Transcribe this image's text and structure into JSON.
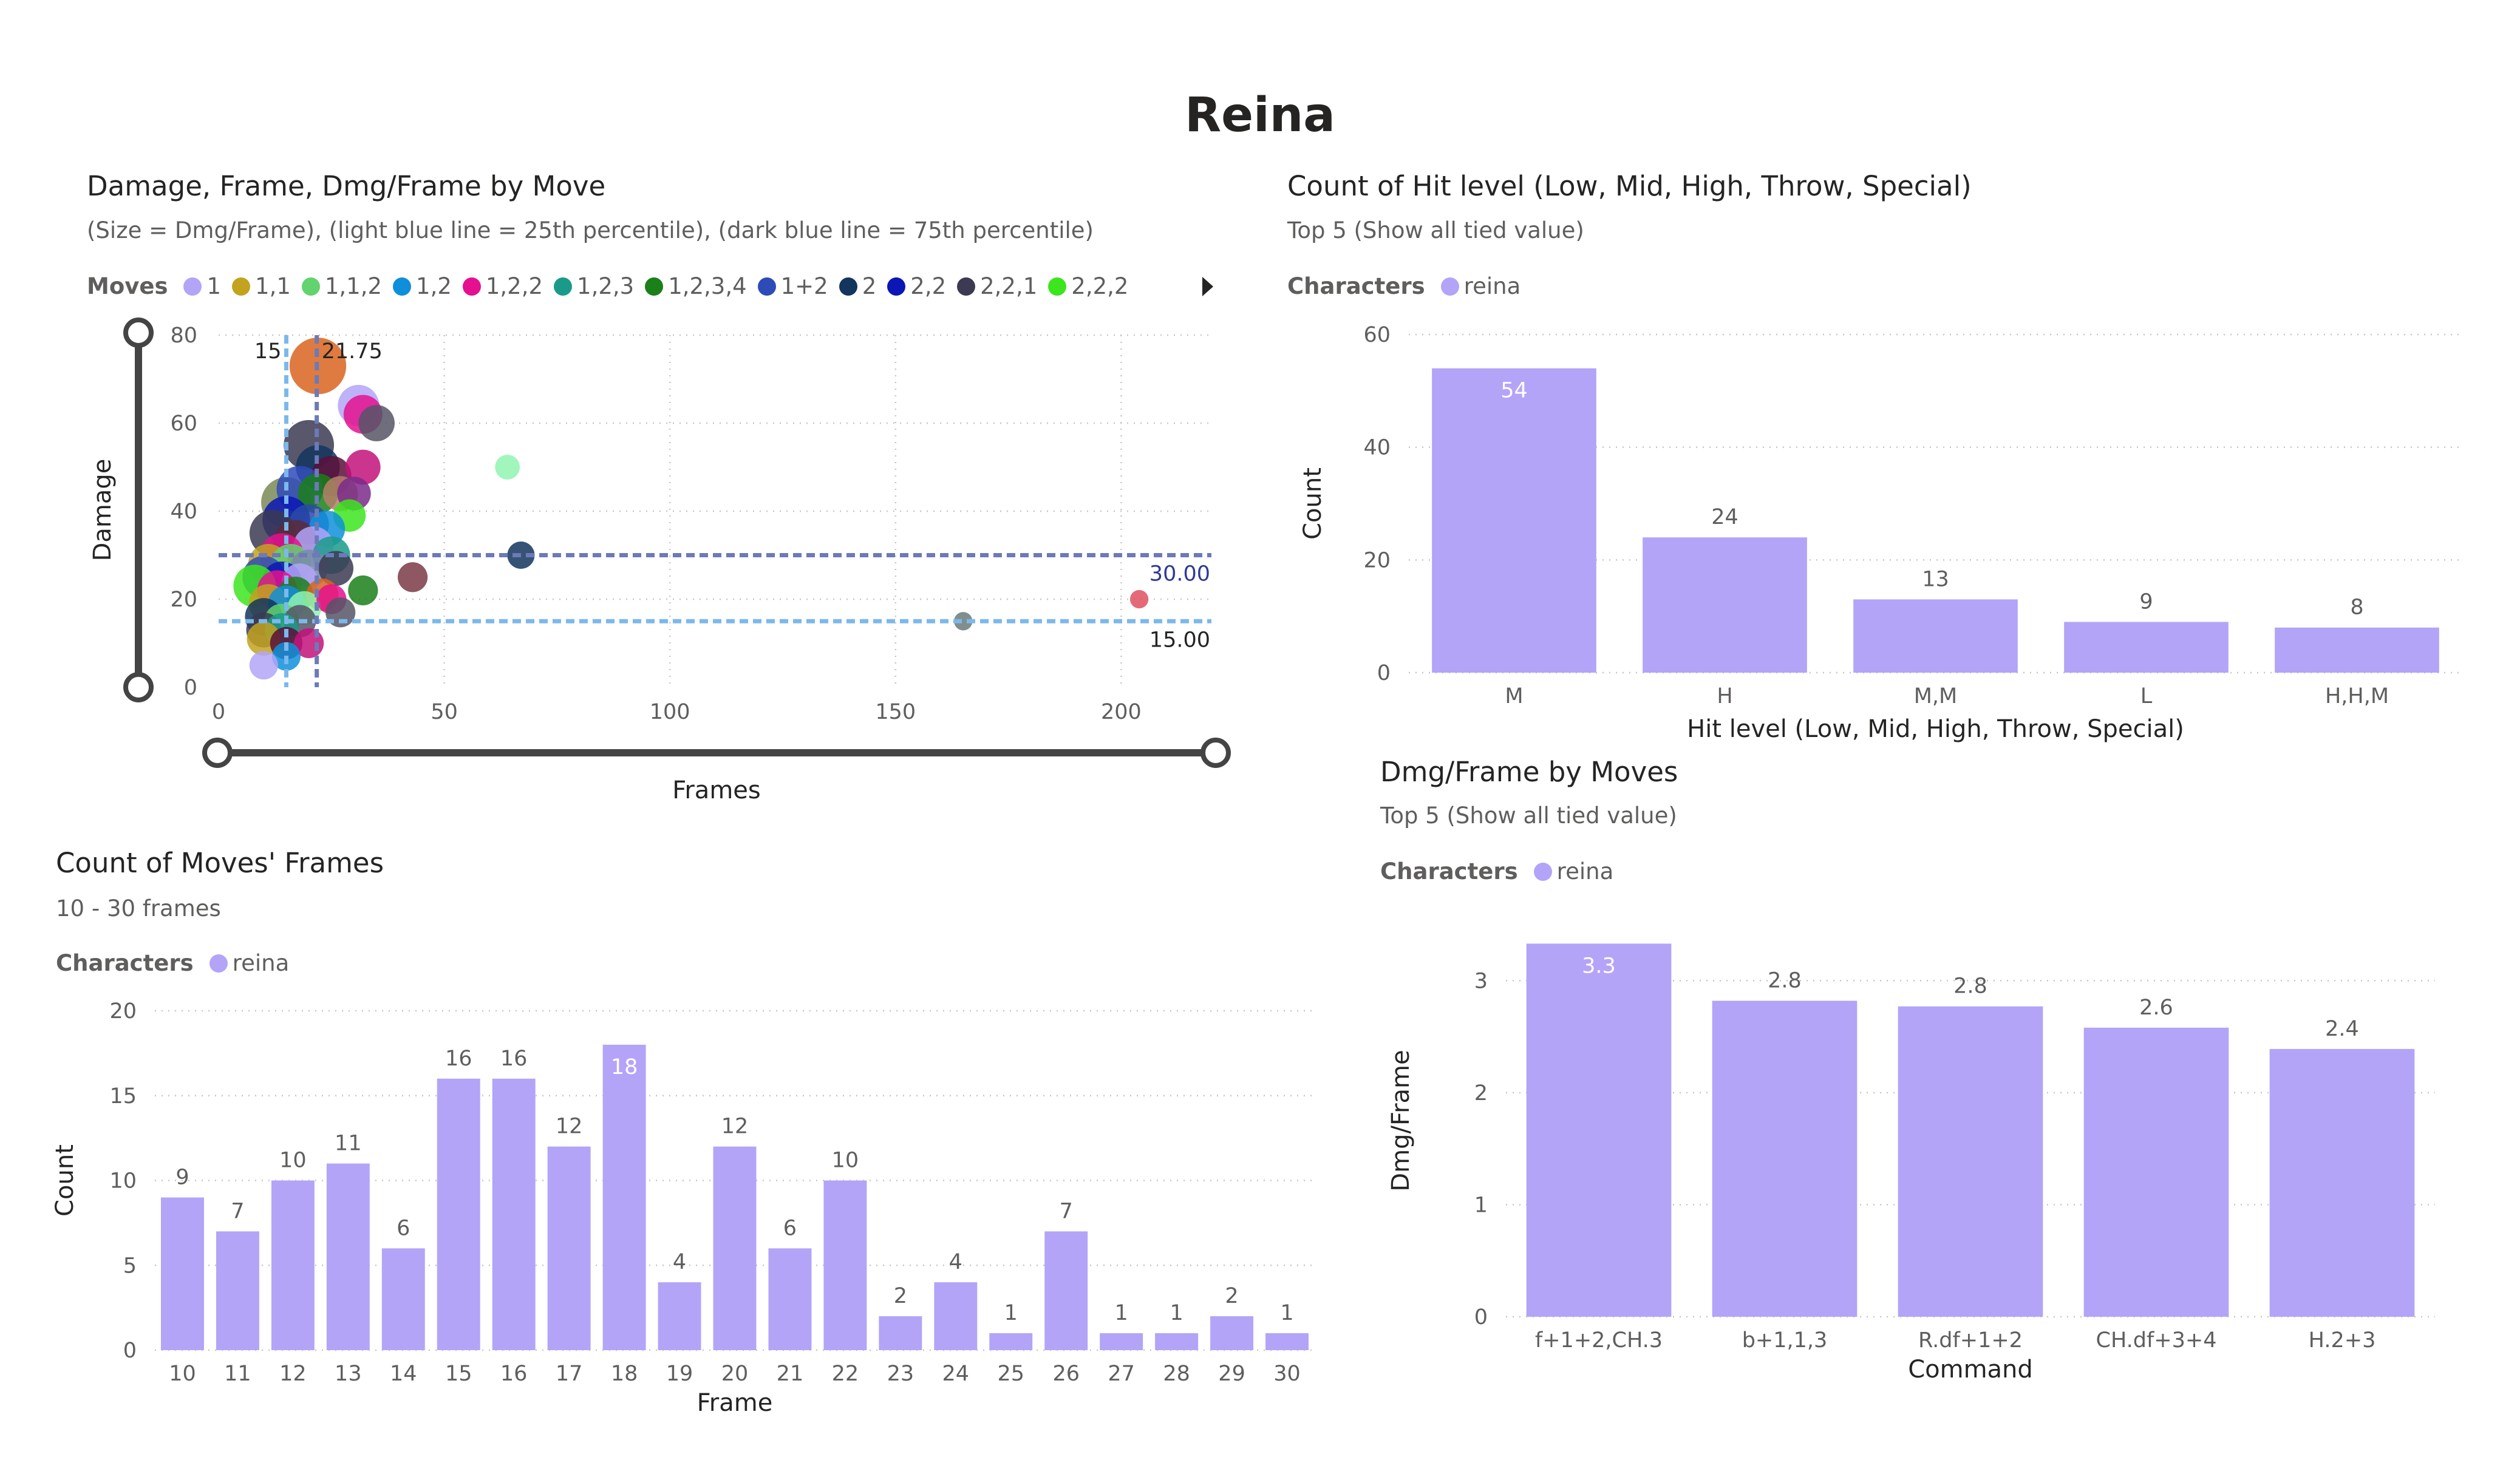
{
  "page": {
    "title": "Reina"
  },
  "colors": {
    "bar": "#b3a4f8",
    "p25": "#7cb8ec",
    "p75": "#6c7ab8",
    "grid": "#c8c6c4",
    "slider": "#444444"
  },
  "scatter": {
    "title": "Damage, Frame, Dmg/Frame by Move",
    "subtitle": "(Size = Dmg/Frame), (light blue line = 25th percentile), (dark blue line = 75th percentile)",
    "legend_title": "Moves",
    "legend": [
      {
        "label": "1",
        "color": "#b3a4f8"
      },
      {
        "label": "1,1",
        "color": "#c3a21e"
      },
      {
        "label": "1,1,2",
        "color": "#62d36f"
      },
      {
        "label": "1,2",
        "color": "#0f8fd9"
      },
      {
        "label": "1,2,2",
        "color": "#e5108f"
      },
      {
        "label": "1,2,3",
        "color": "#1a9b89"
      },
      {
        "label": "1,2,3,4",
        "color": "#1b7f1a"
      },
      {
        "label": "1+2",
        "color": "#2e4bb8"
      },
      {
        "label": "2",
        "color": "#13355e"
      },
      {
        "label": "2,2",
        "color": "#0a16b5"
      },
      {
        "label": "2,2,1",
        "color": "#3b3a52"
      },
      {
        "label": "2,2,2",
        "color": "#3ce51e"
      }
    ],
    "legend_more_icon": "triangle-right-icon",
    "slider_icon": "range-slider-handle-icon",
    "x_label": "Frames",
    "y_label": "Damage",
    "x_ticks": [
      "0",
      "50",
      "100",
      "150",
      "200"
    ],
    "y_ticks": [
      "0",
      "20",
      "40",
      "60",
      "80"
    ],
    "ref_lines": {
      "x_p25": {
        "value": 15,
        "label": "15"
      },
      "x_p75": {
        "value": 21.75,
        "label": "21.75"
      },
      "y_p25": {
        "value": 15,
        "label": "15.00"
      },
      "y_p75": {
        "value": 30,
        "label": "30.00"
      }
    }
  },
  "hit_chart": {
    "title": "Count of Hit level (Low, Mid, High, Throw, Special)",
    "subtitle": "Top 5 (Show all tied value)",
    "legend_title": "Characters",
    "legend_item": "reina",
    "x_label": "Hit level (Low, Mid, High, Throw, Special)",
    "y_label": "Count",
    "y_ticks": [
      "0",
      "20",
      "40",
      "60"
    ]
  },
  "dmg_chart": {
    "title": "Dmg/Frame by Moves",
    "subtitle": "Top 5 (Show all tied value)",
    "legend_title": "Characters",
    "legend_item": "reina",
    "x_label": "Command",
    "y_label": "Dmg/Frame",
    "y_ticks": [
      "0",
      "1",
      "2",
      "3"
    ]
  },
  "frames_chart": {
    "title": "Count of Moves' Frames",
    "subtitle": "10 - 30 frames",
    "legend_title": "Characters",
    "legend_item": "reina",
    "x_label": "Frame",
    "y_label": "Count",
    "y_ticks": [
      "0",
      "5",
      "10",
      "15",
      "20"
    ]
  },
  "chart_data": [
    {
      "type": "scatter",
      "title": "Damage, Frame, Dmg/Frame by Move",
      "xlabel": "Frames",
      "ylabel": "Damage",
      "xlim": [
        0,
        220
      ],
      "ylim": [
        0,
        80
      ],
      "points": [
        {
          "x": 22,
          "y": 73,
          "size": 3.3,
          "color": "#d9641e"
        },
        {
          "x": 31,
          "y": 64,
          "size": 2.1,
          "color": "#b3a4f8"
        },
        {
          "x": 32,
          "y": 62,
          "size": 1.9,
          "color": "#e5108f"
        },
        {
          "x": 35,
          "y": 60,
          "size": 1.7,
          "color": "#555566"
        },
        {
          "x": 64,
          "y": 50,
          "size": 0.8,
          "color": "#8ff5b0"
        },
        {
          "x": 20,
          "y": 55,
          "size": 2.8,
          "color": "#3b3a52"
        },
        {
          "x": 22,
          "y": 50,
          "size": 2.3,
          "color": "#13355e"
        },
        {
          "x": 25,
          "y": 48,
          "size": 2.0,
          "color": "#5a0f3a"
        },
        {
          "x": 32,
          "y": 50,
          "size": 1.6,
          "color": "#c2127a"
        },
        {
          "x": 15,
          "y": 42,
          "size": 2.8,
          "color": "#7a8a55"
        },
        {
          "x": 18,
          "y": 45,
          "size": 2.5,
          "color": "#2e4bb8"
        },
        {
          "x": 22,
          "y": 44,
          "size": 2.0,
          "color": "#1b7f1a"
        },
        {
          "x": 27,
          "y": 44,
          "size": 1.6,
          "color": "#b57f6a"
        },
        {
          "x": 30,
          "y": 44,
          "size": 1.5,
          "color": "#7a2a8a"
        },
        {
          "x": 29,
          "y": 39,
          "size": 1.4,
          "color": "#3ce51e"
        },
        {
          "x": 15,
          "y": 38,
          "size": 2.6,
          "color": "#0a16b5"
        },
        {
          "x": 20,
          "y": 37,
          "size": 2.0,
          "color": "#2a4aa8"
        },
        {
          "x": 24,
          "y": 36,
          "size": 1.7,
          "color": "#0f8fd9"
        },
        {
          "x": 12,
          "y": 35,
          "size": 2.5,
          "color": "#3b3a52"
        },
        {
          "x": 17,
          "y": 33,
          "size": 2.3,
          "color": "#5b2b3a"
        },
        {
          "x": 21,
          "y": 32,
          "size": 2.0,
          "color": "#b3a4f8"
        },
        {
          "x": 25,
          "y": 30,
          "size": 1.8,
          "color": "#1a9b89"
        },
        {
          "x": 14,
          "y": 30,
          "size": 2.3,
          "color": "#e5108f"
        },
        {
          "x": 11,
          "y": 28,
          "size": 2.0,
          "color": "#c3a21e"
        },
        {
          "x": 16,
          "y": 28,
          "size": 2.0,
          "color": "#62d36f"
        },
        {
          "x": 20,
          "y": 27,
          "size": 1.8,
          "color": "#7a8aaa"
        },
        {
          "x": 26,
          "y": 27,
          "size": 1.6,
          "color": "#3b3a52"
        },
        {
          "x": 10,
          "y": 25,
          "size": 2.2,
          "color": "#2e4bb8"
        },
        {
          "x": 14,
          "y": 24,
          "size": 2.0,
          "color": "#0a16b5"
        },
        {
          "x": 18,
          "y": 24,
          "size": 1.7,
          "color": "#b3a4f8"
        },
        {
          "x": 8,
          "y": 23,
          "size": 2.2,
          "color": "#3ce51e"
        },
        {
          "x": 13,
          "y": 22,
          "size": 2.0,
          "color": "#e5108f"
        },
        {
          "x": 17,
          "y": 21,
          "size": 1.7,
          "color": "#1b7f1a"
        },
        {
          "x": 23,
          "y": 21,
          "size": 1.4,
          "color": "#d9641e"
        },
        {
          "x": 11,
          "y": 19,
          "size": 1.9,
          "color": "#c3a21e"
        },
        {
          "x": 15,
          "y": 19,
          "size": 1.7,
          "color": "#0f8fd9"
        },
        {
          "x": 19,
          "y": 18,
          "size": 1.5,
          "color": "#8ff5b0"
        },
        {
          "x": 10,
          "y": 16,
          "size": 1.8,
          "color": "#13355e"
        },
        {
          "x": 14,
          "y": 15,
          "size": 1.6,
          "color": "#62d36f"
        },
        {
          "x": 18,
          "y": 15,
          "size": 1.4,
          "color": "#555566"
        },
        {
          "x": 10,
          "y": 13,
          "size": 1.6,
          "color": "#3b3a52"
        },
        {
          "x": 14,
          "y": 13,
          "size": 1.5,
          "color": "#1a9b89"
        },
        {
          "x": 10,
          "y": 11,
          "size": 1.5,
          "color": "#c3a21e"
        },
        {
          "x": 15,
          "y": 10,
          "size": 1.4,
          "color": "#5a0f3a"
        },
        {
          "x": 20,
          "y": 10,
          "size": 1.2,
          "color": "#c2127a"
        },
        {
          "x": 15,
          "y": 7,
          "size": 1.1,
          "color": "#0f8fd9"
        },
        {
          "x": 10,
          "y": 5,
          "size": 1.1,
          "color": "#b3a4f8"
        },
        {
          "x": 25,
          "y": 20,
          "size": 1.2,
          "color": "#e5108f"
        },
        {
          "x": 27,
          "y": 17,
          "size": 1.2,
          "color": "#555566"
        },
        {
          "x": 32,
          "y": 22,
          "size": 1.2,
          "color": "#1b7f1a"
        },
        {
          "x": 43,
          "y": 25,
          "size": 1.2,
          "color": "#7a3a45"
        },
        {
          "x": 67,
          "y": 30,
          "size": 1.0,
          "color": "#13355e"
        },
        {
          "x": 165,
          "y": 15,
          "size": 0.3,
          "color": "#6a7a7a"
        },
        {
          "x": 204,
          "y": 20,
          "size": 0.3,
          "color": "#e05060"
        }
      ],
      "reference_lines": {
        "x": [
          15,
          21.75
        ],
        "y": [
          15,
          30
        ]
      }
    },
    {
      "type": "bar",
      "title": "Count of Hit level (Low, Mid, High, Throw, Special)",
      "xlabel": "Hit level (Low, Mid, High, Throw, Special)",
      "ylabel": "Count",
      "ylim": [
        0,
        60
      ],
      "categories": [
        "M",
        "H",
        "M,M",
        "L",
        "H,H,M"
      ],
      "values": [
        54,
        24,
        13,
        9,
        8
      ],
      "labels": [
        "54",
        "24",
        "13",
        "9",
        "8"
      ]
    },
    {
      "type": "bar",
      "title": "Dmg/Frame by Moves",
      "xlabel": "Command",
      "ylabel": "Dmg/Frame",
      "ylim": [
        0,
        3.5
      ],
      "categories": [
        "f+1+2,CH.3",
        "b+1,1,3",
        "R.df+1+2",
        "CH.df+3+4",
        "H.2+3"
      ],
      "values": [
        3.33,
        2.82,
        2.77,
        2.58,
        2.39
      ],
      "labels": [
        "3.3",
        "2.8",
        "2.8",
        "2.6",
        "2.4"
      ]
    },
    {
      "type": "bar",
      "title": "Count of Moves' Frames",
      "xlabel": "Frame",
      "ylabel": "Count",
      "ylim": [
        0,
        20
      ],
      "categories": [
        "10",
        "11",
        "12",
        "13",
        "14",
        "15",
        "16",
        "17",
        "18",
        "19",
        "20",
        "21",
        "22",
        "23",
        "24",
        "25",
        "26",
        "27",
        "28",
        "29",
        "30"
      ],
      "values": [
        9,
        7,
        10,
        11,
        6,
        16,
        16,
        12,
        18,
        4,
        12,
        6,
        10,
        2,
        4,
        1,
        7,
        1,
        1,
        2,
        1
      ],
      "labels": [
        "9",
        "7",
        "10",
        "11",
        "6",
        "16",
        "16",
        "12",
        "18",
        "4",
        "12",
        "6",
        "10",
        "2",
        "4",
        "1",
        "7",
        "1",
        "1",
        "2",
        "1"
      ]
    }
  ]
}
